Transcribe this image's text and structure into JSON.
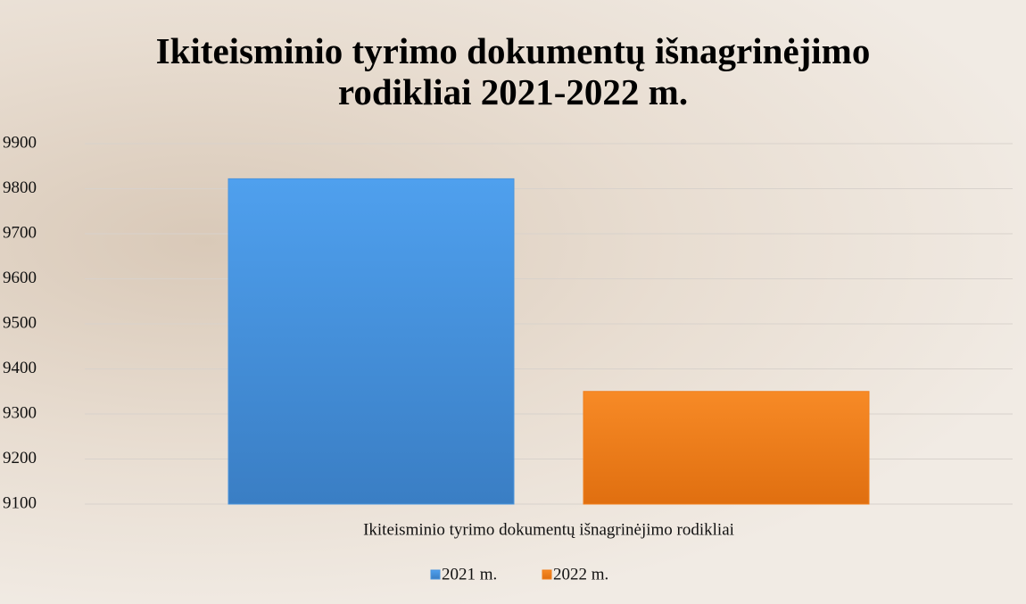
{
  "chart_data": {
    "type": "bar",
    "title": "Ikiteisminio tyrimo dokumentų išnagrinėjimo rodikliai 2021-2022 m.",
    "categories": [
      "Ikiteisminio tyrimo dokumentų išnagrinėjimo rodikliai"
    ],
    "series": [
      {
        "name": "2021 m.",
        "color": "#4a94dc",
        "values": [
          9822
        ]
      },
      {
        "name": "2022 m.",
        "color": "#f07f1c",
        "values": [
          9350
        ]
      }
    ],
    "ylim": [
      9100,
      9900
    ],
    "yticks": [
      9100,
      9200,
      9300,
      9400,
      9500,
      9600,
      9700,
      9800,
      9900
    ],
    "grid": true,
    "legend": "bottom"
  }
}
